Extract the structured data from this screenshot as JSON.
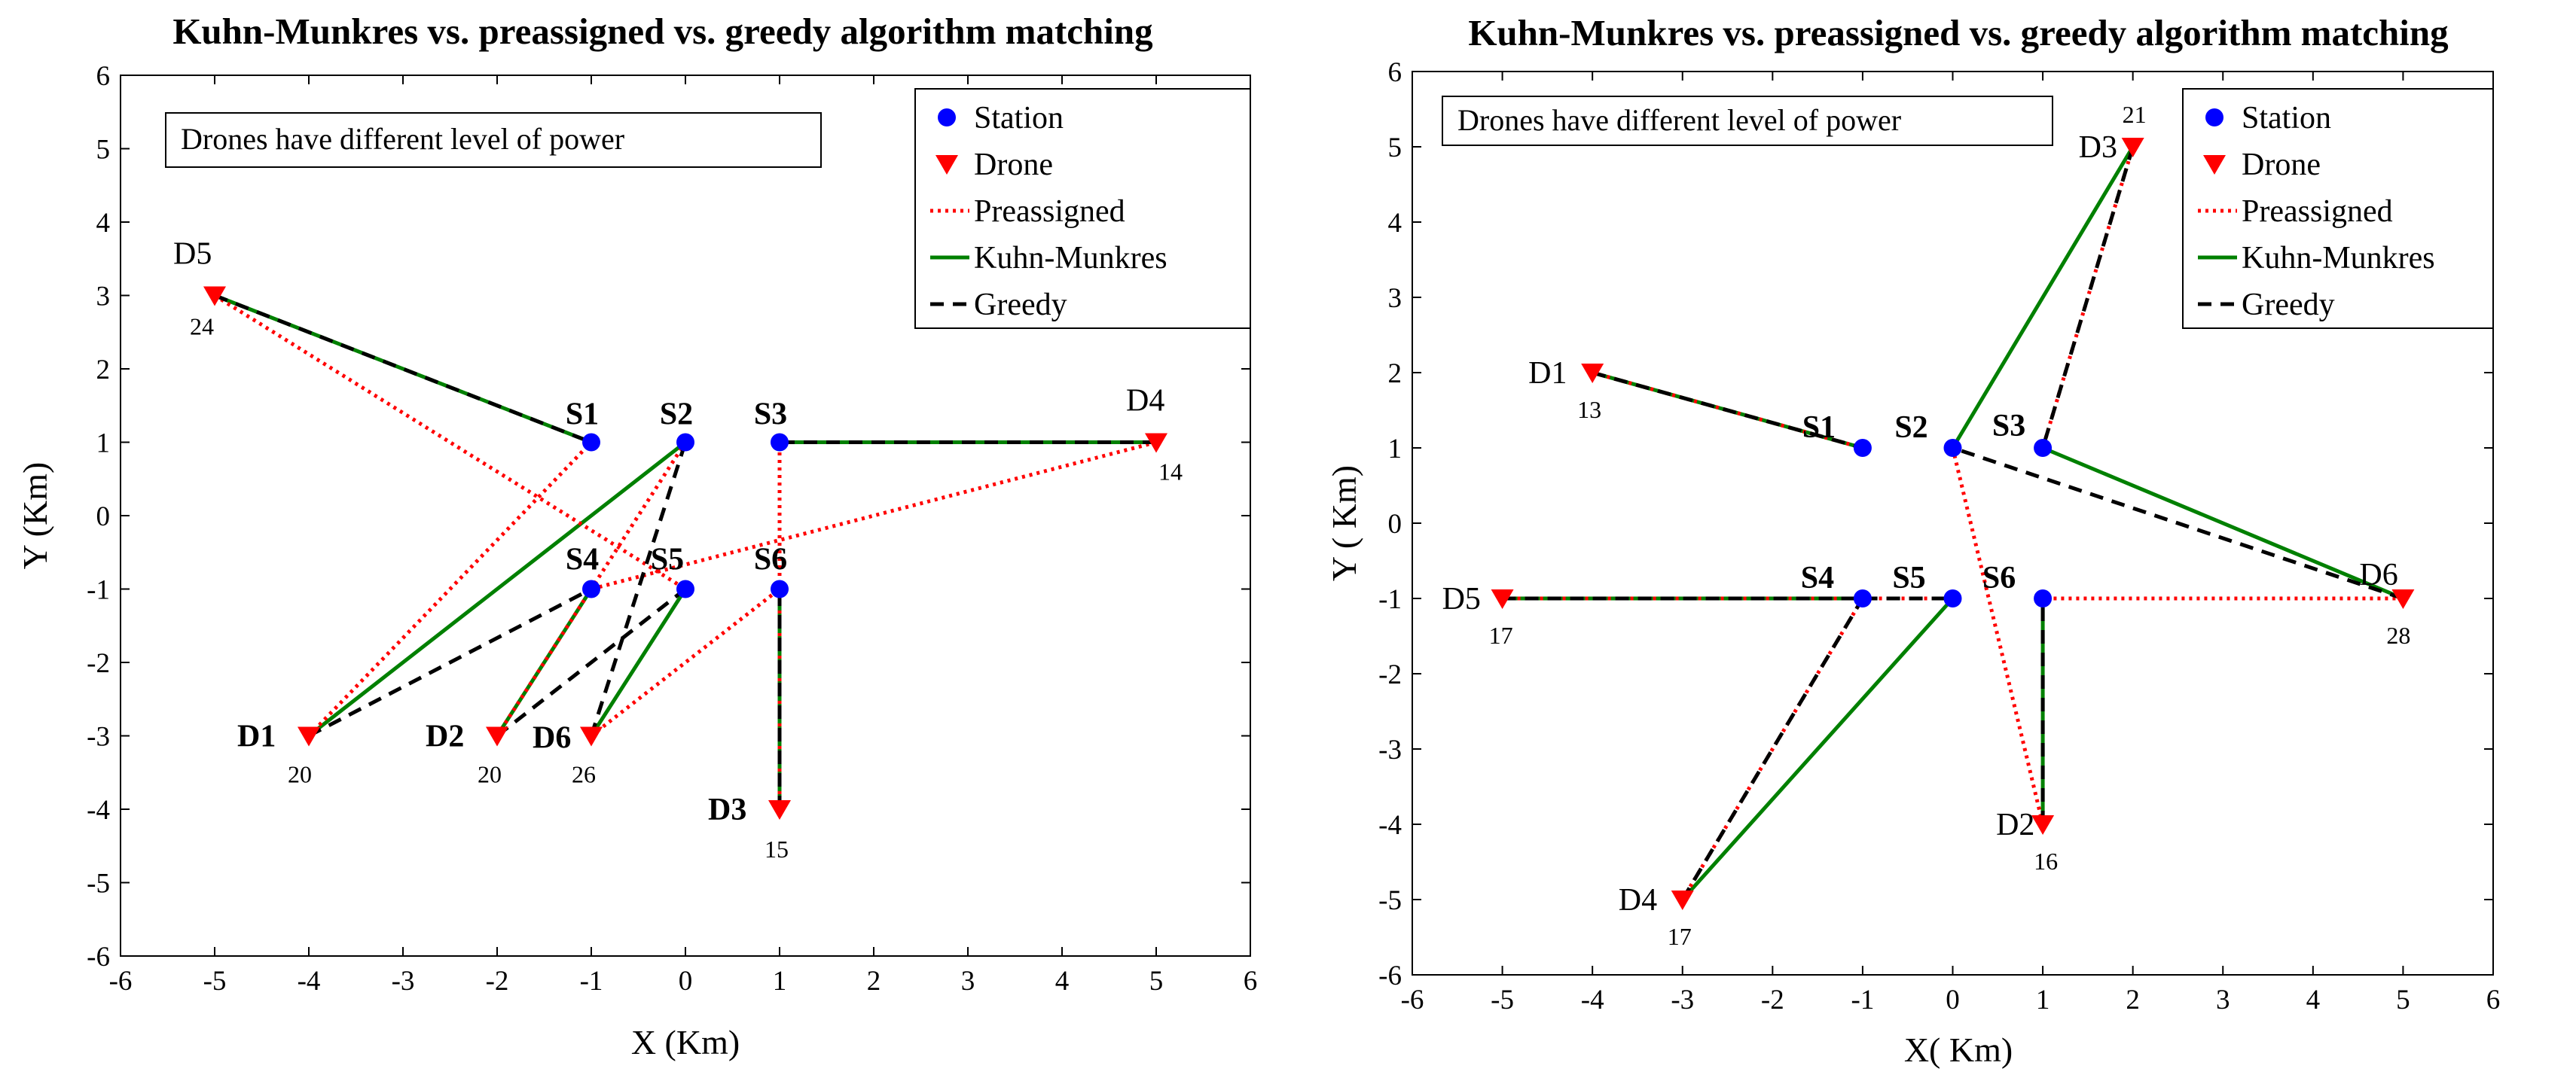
{
  "colors": {
    "station": "#0000ff",
    "drone": "#ff0000",
    "preassigned": "#ff0000",
    "kuhn_munkres": "#008000",
    "greedy": "#000000",
    "axes": "#000000"
  },
  "chart_data": [
    {
      "type": "scatter",
      "title": "Kuhn-Munkres vs. preassigned vs.  greedy algorithm matching",
      "xlabel": "X (Km)",
      "ylabel": "Y (Km)",
      "xlim": [
        -6,
        6
      ],
      "ylim": [
        -6,
        6
      ],
      "xticks": [
        "-6",
        "-5",
        "-4",
        "-3",
        "-2",
        "-1",
        "0",
        "1",
        "2",
        "3",
        "4",
        "5",
        "6"
      ],
      "yticks": [
        "6",
        "5",
        "4",
        "3",
        "2",
        "1",
        "0",
        "-1",
        "-2",
        "-3",
        "-4",
        "-5",
        "-6"
      ],
      "annotation": "Drones have different level of power",
      "legend": [
        {
          "name": "Station"
        },
        {
          "name": "Drone"
        },
        {
          "name": "Preassigned"
        },
        {
          "name": "Kuhn-Munkres"
        },
        {
          "name": "Greedy"
        }
      ],
      "stations": [
        {
          "label": "S1",
          "x": -1,
          "y": 1
        },
        {
          "label": "S2",
          "x": 0,
          "y": 1
        },
        {
          "label": "S3",
          "x": 1,
          "y": 1
        },
        {
          "label": "S4",
          "x": -1,
          "y": -1
        },
        {
          "label": "S5",
          "x": 0,
          "y": -1
        },
        {
          "label": "S6",
          "x": 1,
          "y": -1
        }
      ],
      "drones": [
        {
          "label": "D1",
          "x": -4,
          "y": -3,
          "power": "20"
        },
        {
          "label": "D2",
          "x": -2,
          "y": -3,
          "power": "20"
        },
        {
          "label": "D3",
          "x": 1,
          "y": -4,
          "power": "15"
        },
        {
          "label": "D4",
          "x": 5,
          "y": 1,
          "power": "14"
        },
        {
          "label": "D5",
          "x": -5,
          "y": 3,
          "power": "24"
        },
        {
          "label": "D6",
          "x": -1,
          "y": -3,
          "power": "26"
        }
      ],
      "preassigned": [
        [
          "D1",
          "S1"
        ],
        [
          "D2",
          "S2"
        ],
        [
          "D3",
          "S3"
        ],
        [
          "D4",
          "S4"
        ],
        [
          "D5",
          "S5"
        ],
        [
          "D6",
          "S6"
        ]
      ],
      "kuhn_munkres": [
        [
          "D5",
          "S1"
        ],
        [
          "D1",
          "S2"
        ],
        [
          "D4",
          "S3"
        ],
        [
          "D2",
          "S4"
        ],
        [
          "D6",
          "S5"
        ],
        [
          "D3",
          "S6"
        ]
      ],
      "greedy": [
        [
          "D5",
          "S1"
        ],
        [
          "D6",
          "S2"
        ],
        [
          "D4",
          "S3"
        ],
        [
          "D1",
          "S4"
        ],
        [
          "D2",
          "S5"
        ],
        [
          "D3",
          "S6"
        ]
      ]
    },
    {
      "type": "scatter",
      "title": "Kuhn-Munkres vs. preassigned vs.  greedy algorithm matching",
      "xlabel": "X( Km)",
      "ylabel": "Y ( Km)",
      "xlim": [
        -6,
        6
      ],
      "ylim": [
        -6,
        6
      ],
      "xticks": [
        "-6",
        "-5",
        "-4",
        "-3",
        "-2",
        "-1",
        "0",
        "1",
        "2",
        "3",
        "4",
        "5",
        "6"
      ],
      "yticks": [
        "6",
        "5",
        "4",
        "3",
        "2",
        "1",
        "0",
        "-1",
        "-2",
        "-3",
        "-4",
        "-5",
        "-6"
      ],
      "annotation": "Drones have different level of power",
      "legend": [
        {
          "name": "Station"
        },
        {
          "name": "Drone"
        },
        {
          "name": "Preassigned"
        },
        {
          "name": "Kuhn-Munkres"
        },
        {
          "name": "Greedy"
        }
      ],
      "stations": [
        {
          "label": "S1",
          "x": -1,
          "y": 1
        },
        {
          "label": "S2",
          "x": 0,
          "y": 1
        },
        {
          "label": "S3",
          "x": 1,
          "y": 1
        },
        {
          "label": "S4",
          "x": -1,
          "y": -1
        },
        {
          "label": "S5",
          "x": 0,
          "y": -1
        },
        {
          "label": "S6",
          "x": 1,
          "y": -1
        }
      ],
      "drones": [
        {
          "label": "D1",
          "x": -4,
          "y": 2,
          "power": "13"
        },
        {
          "label": "D2",
          "x": 1,
          "y": -4,
          "power": "16"
        },
        {
          "label": "D3",
          "x": 2,
          "y": 5,
          "power": "21"
        },
        {
          "label": "D4",
          "x": -3,
          "y": -5,
          "power": "17"
        },
        {
          "label": "D5",
          "x": -5,
          "y": -1,
          "power": "17"
        },
        {
          "label": "D6",
          "x": 5,
          "y": -1,
          "power": "28"
        }
      ],
      "preassigned": [
        [
          "D1",
          "S1"
        ],
        [
          "D2",
          "S2"
        ],
        [
          "D3",
          "S3"
        ],
        [
          "D4",
          "S4"
        ],
        [
          "D5",
          "S5"
        ],
        [
          "D6",
          "S6"
        ]
      ],
      "kuhn_munkres": [
        [
          "D1",
          "S1"
        ],
        [
          "D3",
          "S2"
        ],
        [
          "D6",
          "S3"
        ],
        [
          "D5",
          "S4"
        ],
        [
          "D4",
          "S5"
        ],
        [
          "D2",
          "S6"
        ]
      ],
      "greedy": [
        [
          "D1",
          "S1"
        ],
        [
          "D6",
          "S2"
        ],
        [
          "D3",
          "S3"
        ],
        [
          "D4",
          "S4"
        ],
        [
          "D5",
          "S5"
        ],
        [
          "D2",
          "S6"
        ]
      ]
    }
  ]
}
